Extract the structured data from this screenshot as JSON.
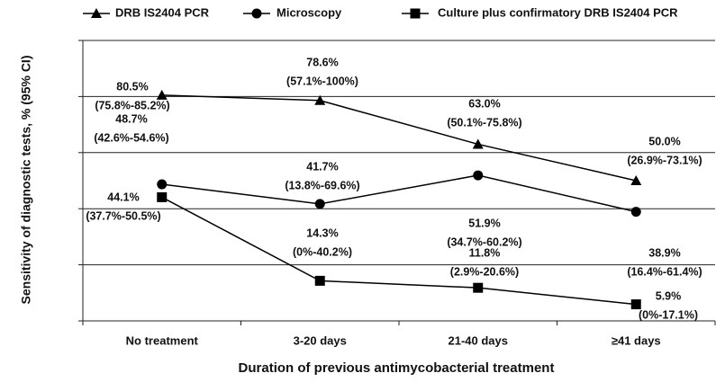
{
  "chart_data": {
    "type": "line",
    "x_label": "Duration of previous antimycobacterial treatment",
    "y_label": "Sensitivity of diagnostic tests, % (95% CI)",
    "categories": [
      "No treatment",
      "3-20 days",
      "21-40 days",
      "≥41 days"
    ],
    "ylim": [
      0,
      100
    ],
    "yticks": [
      0,
      20,
      40,
      60,
      80,
      100
    ],
    "grid": true,
    "series": [
      {
        "name": "DRB IS2404 PCR",
        "color": "#000000",
        "marker": "triangle",
        "values": [
          80.5,
          78.6,
          63.0,
          50.0
        ],
        "value_labels": [
          "80.5%",
          "78.6%",
          "63.0%",
          "50.0%"
        ],
        "ci_labels": [
          "(75.8%-85.2%)",
          "(57.1%-100%)",
          "(50.1%-75.8%)",
          "(26.9%-73.1%)"
        ]
      },
      {
        "name": "Microscopy",
        "color": "#000000",
        "marker": "circle",
        "values": [
          48.7,
          41.7,
          51.9,
          38.9
        ],
        "value_labels": [
          "48.7%",
          "41.7%",
          "51.9%",
          "38.9%"
        ],
        "ci_labels": [
          "(42.6%-54.6%)",
          "(13.8%-69.6%)",
          "(34.7%-60.2%)",
          "(16.4%-61.4%)"
        ]
      },
      {
        "name": "Culture plus confirmatory DRB IS2404 PCR",
        "color": "#000000",
        "marker": "square",
        "values": [
          44.1,
          14.3,
          11.8,
          5.9
        ],
        "value_labels": [
          "44.1%",
          "14.3%",
          "11.8%",
          "5.9%"
        ],
        "ci_labels": [
          "(37.7%-50.5%)",
          "(0%-40.2%)",
          "(2.9%-20.6%)",
          "(0%-17.1%)"
        ]
      }
    ]
  }
}
